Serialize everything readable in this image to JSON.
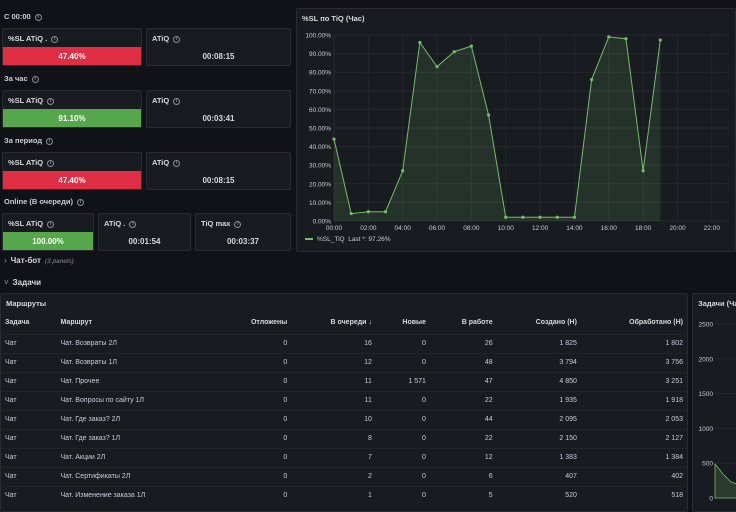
{
  "sections": {
    "since_midnight": "С 00:00",
    "last_hour": "За час",
    "period": "За период",
    "online": "Online (В очереди)"
  },
  "stats": {
    "midnight_sl_title": "%SL ATiQ .",
    "midnight_sl_value": "47.40%",
    "midnight_atiq_title": "ATiQ",
    "midnight_atiq_value": "00:08:15",
    "hour_sl_title": "%SL ATiQ",
    "hour_sl_value": "91.10%",
    "hour_atiq_title": "ATiQ",
    "hour_atiq_value": "00:03:41",
    "period_sl_title": "%SL ATiQ",
    "period_sl_value": "47.40%",
    "period_atiq_title": "ATiQ",
    "period_atiq_value": "00:08:15",
    "online_sl_title": "%SL ATiQ",
    "online_sl_value": "100.00%",
    "online_atiq_title": "ATiQ .",
    "online_atiq_value": "00:01:54",
    "online_tiqmax_title": "TiQ max",
    "online_tiqmax_value": "00:03:37"
  },
  "colors": {
    "bad": "#e02f44",
    "good": "#56a64b",
    "series": "#73bf69"
  },
  "sl_chart": {
    "title": "%SL по TiQ (Час)",
    "legend_name": "%SL_TiQ",
    "legend_last": "Last *: 97.26%"
  },
  "chart_data": {
    "type": "area",
    "title": "%SL по TiQ (Час)",
    "x_ticks": [
      "00:00",
      "02:00",
      "04:00",
      "06:00",
      "08:00",
      "10:00",
      "12:00",
      "14:00",
      "16:00",
      "18:00",
      "20:00",
      "22:00"
    ],
    "y_ticks": [
      "0.00%",
      "10.00%",
      "20.00%",
      "30.00%",
      "40.00%",
      "50.00%",
      "60.00%",
      "70.00%",
      "80.00%",
      "90.00%",
      "100.00%"
    ],
    "ylim": [
      0,
      100
    ],
    "xlim_hours": [
      0,
      23
    ],
    "series": [
      {
        "name": "%SL_TiQ",
        "x_hours": [
          0,
          1,
          2,
          3,
          4,
          5,
          6,
          7,
          8,
          9,
          10,
          11,
          12,
          13,
          14,
          15,
          16,
          17,
          18,
          19
        ],
        "values": [
          44,
          4,
          5,
          5,
          27,
          96,
          83,
          91,
          94,
          57,
          2,
          2,
          2,
          2,
          2,
          76,
          99,
          98,
          27,
          97.26
        ]
      }
    ]
  },
  "rows": {
    "chatbot_title": "Чат-бот",
    "chatbot_sub": "(3 panels)",
    "tasks_title": "Задачи"
  },
  "routes": {
    "title": "Маршруты",
    "headers": [
      "Задача",
      "Маршрут",
      "Отложены",
      "В очереди ↓",
      "Новые",
      "В работе",
      "Создано (Н)",
      "Обработано (Н)"
    ],
    "rows": [
      [
        "Чат",
        "Чат. Возвраты 2Л",
        "0",
        "16",
        "0",
        "26",
        "1 825",
        "1 802"
      ],
      [
        "Чат",
        "Чат. Возвраты 1Л",
        "0",
        "12",
        "0",
        "48",
        "3 794",
        "3 756"
      ],
      [
        "Чат",
        "Чат. Прочее",
        "0",
        "11",
        "1 571",
        "47",
        "4 850",
        "3 251"
      ],
      [
        "Чат",
        "Чат. Вопросы по сайту 1Л",
        "0",
        "11",
        "0",
        "22",
        "1 935",
        "1 918"
      ],
      [
        "Чат",
        "Чат. Где заказ? 2Л",
        "0",
        "10",
        "0",
        "44",
        "2 095",
        "2 053"
      ],
      [
        "Чат",
        "Чат. Где заказ? 1Л",
        "0",
        "8",
        "0",
        "22",
        "2 150",
        "2 127"
      ],
      [
        "Чат",
        "Чат. Акции 2Л",
        "0",
        "7",
        "0",
        "12",
        "1 383",
        "1 384"
      ],
      [
        "Чат",
        "Чат. Сертификаты 2Л",
        "0",
        "2",
        "0",
        "6",
        "407",
        "402"
      ],
      [
        "Чат",
        "Чат. Изменение заказа 1Л",
        "0",
        "1",
        "0",
        "5",
        "520",
        "518"
      ]
    ]
  },
  "tasks_chart": {
    "title": "Задачи (Ча",
    "y_ticks": [
      "2500",
      "2000",
      "1500",
      "1000",
      "500",
      "0"
    ]
  }
}
